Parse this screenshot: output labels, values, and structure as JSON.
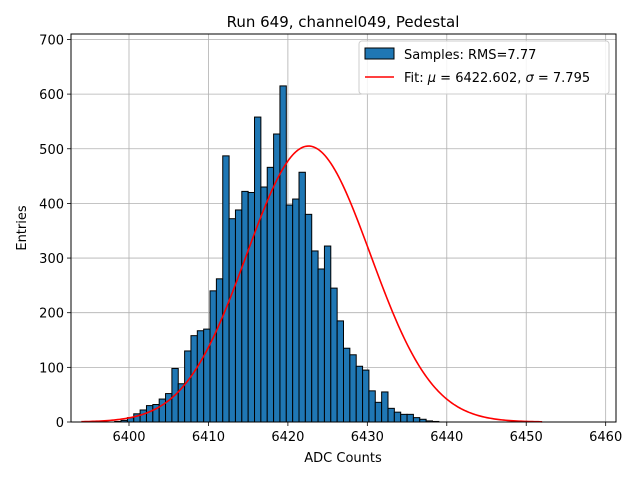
{
  "chart_data": {
    "type": "bar",
    "title": "Run 649, channel049, Pedestal",
    "xlabel": "ADC Counts",
    "ylabel": "Entries",
    "xlim": [
      6392.7,
      6461.3
    ],
    "ylim": [
      0,
      710
    ],
    "xticks": [
      6400,
      6410,
      6420,
      6430,
      6440,
      6450,
      6460
    ],
    "yticks": [
      0,
      100,
      200,
      300,
      400,
      500,
      600,
      700
    ],
    "grid": true,
    "legend_position": "top-right",
    "bin_edges_start": 6398.2,
    "bin_width": 0.8,
    "histogram": {
      "name": "Samples: RMS=7.77",
      "values": [
        1,
        3,
        8,
        15,
        22,
        30,
        32,
        42,
        52,
        98,
        70,
        130,
        158,
        167,
        170,
        240,
        262,
        487,
        372,
        388,
        422,
        420,
        558,
        430,
        466,
        527,
        615,
        397,
        408,
        457,
        380,
        313,
        280,
        322,
        245,
        185,
        135,
        123,
        102,
        95,
        57,
        36,
        55,
        25,
        18,
        14,
        14,
        8,
        5,
        2,
        1
      ]
    },
    "fit": {
      "name_prefix": "Fit: ",
      "name_mu": "μ",
      "name_mid": " = 6422.602, ",
      "name_sigma": "σ",
      "name_suffix": " = 7.795",
      "mu": 6422.602,
      "sigma": 7.795,
      "amplitude": 505,
      "x_range": [
        6394,
        6452
      ]
    },
    "colors": {
      "bar_fill": "#1f77b4",
      "bar_edge": "#000000",
      "fit_line": "#ff0000",
      "grid": "#b0b0b0"
    }
  }
}
